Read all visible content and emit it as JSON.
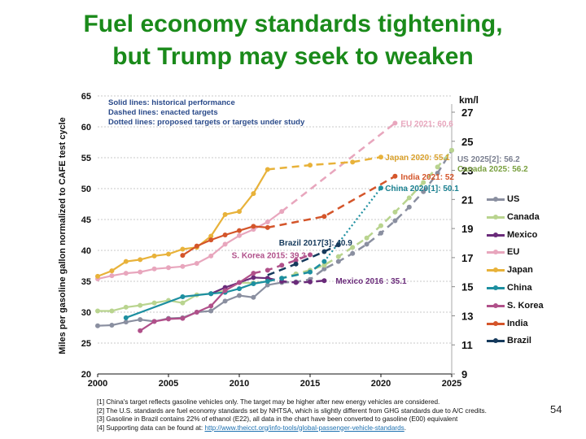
{
  "slide": {
    "title_line1": "Fuel economy standards tightening,",
    "title_line2": "but Trump may seek to weaken",
    "slide_number": "54",
    "title_color": "#1a8a1a"
  },
  "notes": {
    "solid": "Solid lines: historical performance",
    "dashed": "Dashed lines: enacted targets",
    "dotted": "Dotted lines: proposed targets or targets under study"
  },
  "footnotes": {
    "f1": "[1] China's target reflects gasoline vehicles only. The target may be higher after new energy vehicles are considered.",
    "f2": "[2] The U.S. standards are fuel economy standards set by NHTSA, which is slightly different from GHG standards due to A/C credits.",
    "f3": "[3] Gasoline in Brazil contains 22% of ethanol (E22), all data in the chart have been converted to gasoline (E00) equivalent",
    "f4_prefix": "[4] Supporting data can be found at: ",
    "f4_link": "http://www.theicct.org/info-tools/global-passenger-vehicle-standards",
    "f4_suffix": "."
  },
  "chart_data": {
    "type": "line",
    "title": "Fuel economy standards tightening, but Trump may seek to weaken",
    "xlabel": "",
    "ylabel": "Miles per gasoline gallon normalized to CAFE test cycle",
    "y2label": "km/l",
    "xlim": [
      2000,
      2025
    ],
    "ylim": [
      20,
      65
    ],
    "y2lim": [
      9,
      27
    ],
    "x_ticks": [
      "2000",
      "2005",
      "2010",
      "2015",
      "2020",
      "2025"
    ],
    "x_tick_values": [
      2000,
      2005,
      2010,
      2015,
      2020,
      2025
    ],
    "y_ticks": [
      "20",
      "25",
      "30",
      "35",
      "40",
      "45",
      "50",
      "55",
      "60",
      "65"
    ],
    "y_tick_values": [
      20,
      25,
      30,
      35,
      40,
      45,
      50,
      55,
      60,
      65
    ],
    "y2_ticks": [
      "9",
      "11",
      "13",
      "15",
      "17",
      "19",
      "21",
      "23",
      "25",
      "27"
    ],
    "y2_tick_values": [
      9,
      11,
      13,
      15,
      17,
      19,
      21,
      23,
      25,
      27
    ],
    "grid": true,
    "legend_position": "right",
    "series": [
      {
        "name": "US",
        "color": "#8a8fa0",
        "historical": [
          [
            2000,
            27.8
          ],
          [
            2001,
            27.9
          ],
          [
            2002,
            28.4
          ],
          [
            2003,
            28.8
          ],
          [
            2004,
            28.5
          ],
          [
            2005,
            29.0
          ],
          [
            2006,
            29.1
          ],
          [
            2007,
            30.0
          ],
          [
            2008,
            30.2
          ],
          [
            2009,
            31.8
          ],
          [
            2010,
            32.7
          ],
          [
            2011,
            32.4
          ],
          [
            2012,
            34.4
          ],
          [
            2013,
            34.8
          ]
        ],
        "enacted": [
          [
            2013,
            34.8
          ],
          [
            2014,
            34.9
          ],
          [
            2015,
            35.3
          ],
          [
            2016,
            37.0
          ],
          [
            2017,
            38.2
          ],
          [
            2018,
            39.5
          ],
          [
            2019,
            41.0
          ],
          [
            2020,
            42.8
          ],
          [
            2021,
            44.8
          ],
          [
            2022,
            47.0
          ],
          [
            2023,
            49.5
          ],
          [
            2024,
            52.5
          ],
          [
            2025,
            56.2
          ]
        ],
        "proposed": []
      },
      {
        "name": "Canada",
        "color": "#b9d48f",
        "historical": [
          [
            2000,
            30.2
          ],
          [
            2001,
            30.2
          ],
          [
            2002,
            30.8
          ],
          [
            2003,
            31.1
          ],
          [
            2004,
            31.5
          ],
          [
            2005,
            31.9
          ],
          [
            2006,
            31.5
          ],
          [
            2007,
            32.8
          ],
          [
            2008,
            33.0
          ],
          [
            2009,
            33.5
          ],
          [
            2010,
            34.8
          ],
          [
            2011,
            34.7
          ],
          [
            2012,
            35.0
          ]
        ],
        "enacted": [
          [
            2012,
            35.0
          ],
          [
            2013,
            35.5
          ],
          [
            2014,
            36.2
          ],
          [
            2015,
            36.8
          ],
          [
            2016,
            37.6
          ],
          [
            2017,
            39.0
          ],
          [
            2018,
            40.5
          ],
          [
            2019,
            42.0
          ],
          [
            2020,
            44.0
          ],
          [
            2021,
            46.2
          ],
          [
            2022,
            48.5
          ],
          [
            2023,
            51.0
          ],
          [
            2024,
            53.5
          ],
          [
            2025,
            56.2
          ]
        ],
        "proposed": []
      },
      {
        "name": "Mexico",
        "color": "#6a2b7a",
        "historical": [
          [
            2008,
            33.0
          ],
          [
            2009,
            34.0
          ],
          [
            2010,
            34.8
          ],
          [
            2011,
            35.6
          ],
          [
            2012,
            35.5
          ]
        ],
        "enacted": [
          [
            2012,
            35.5
          ],
          [
            2013,
            35.0
          ],
          [
            2014,
            34.8
          ],
          [
            2015,
            34.9
          ],
          [
            2016,
            35.1
          ]
        ],
        "proposed": []
      },
      {
        "name": "EU",
        "color": "#e8a6bd",
        "historical": [
          [
            2000,
            35.4
          ],
          [
            2001,
            35.9
          ],
          [
            2002,
            36.3
          ],
          [
            2003,
            36.5
          ],
          [
            2004,
            37.0
          ],
          [
            2005,
            37.2
          ],
          [
            2006,
            37.4
          ],
          [
            2007,
            37.9
          ],
          [
            2008,
            39.1
          ],
          [
            2009,
            41.0
          ],
          [
            2010,
            42.4
          ],
          [
            2011,
            43.4
          ],
          [
            2012,
            44.6
          ],
          [
            2013,
            46.3
          ]
        ],
        "enacted": [
          [
            2013,
            46.3
          ],
          [
            2021,
            60.6
          ]
        ],
        "proposed": []
      },
      {
        "name": "Japan",
        "color": "#e8b23a",
        "historical": [
          [
            2000,
            35.8
          ],
          [
            2001,
            36.7
          ],
          [
            2002,
            38.2
          ],
          [
            2003,
            38.5
          ],
          [
            2004,
            39.1
          ],
          [
            2005,
            39.4
          ],
          [
            2006,
            40.2
          ],
          [
            2007,
            40.5
          ],
          [
            2008,
            42.3
          ],
          [
            2009,
            45.8
          ],
          [
            2010,
            46.3
          ],
          [
            2011,
            49.2
          ],
          [
            2012,
            53.1
          ]
        ],
        "enacted": [
          [
            2012,
            53.1
          ],
          [
            2015,
            53.8
          ],
          [
            2018,
            54.3
          ],
          [
            2020,
            55.1
          ]
        ],
        "proposed": []
      },
      {
        "name": "China",
        "color": "#1d8fa0",
        "historical": [
          [
            2002,
            29.1
          ],
          [
            2006,
            32.5
          ],
          [
            2008,
            33.0
          ],
          [
            2009,
            33.2
          ],
          [
            2010,
            33.8
          ],
          [
            2011,
            34.6
          ],
          [
            2012,
            35.0
          ]
        ],
        "enacted": [
          [
            2012,
            35.0
          ],
          [
            2013,
            35.5
          ],
          [
            2015,
            36.5
          ],
          [
            2016,
            38.2
          ]
        ],
        "proposed": [
          [
            2016,
            38.2
          ],
          [
            2020,
            50.1
          ]
        ]
      },
      {
        "name": "S. Korea",
        "color": "#b0508a",
        "historical": [
          [
            2003,
            27.0
          ],
          [
            2004,
            28.5
          ],
          [
            2005,
            28.9
          ],
          [
            2006,
            29.0
          ],
          [
            2007,
            30.0
          ],
          [
            2008,
            31.0
          ],
          [
            2009,
            33.5
          ],
          [
            2010,
            34.8
          ],
          [
            2011,
            36.3
          ]
        ],
        "enacted": [
          [
            2011,
            36.3
          ],
          [
            2012,
            36.8
          ],
          [
            2013,
            37.6
          ],
          [
            2014,
            38.4
          ],
          [
            2015,
            39.3
          ]
        ],
        "proposed": []
      },
      {
        "name": "India",
        "color": "#d4552a",
        "historical": [
          [
            2006,
            39.2
          ],
          [
            2007,
            40.7
          ],
          [
            2008,
            41.7
          ],
          [
            2009,
            42.5
          ],
          [
            2010,
            43.2
          ],
          [
            2011,
            43.9
          ],
          [
            2012,
            43.7
          ]
        ],
        "enacted": [
          [
            2012,
            43.7
          ],
          [
            2016,
            45.5
          ],
          [
            2021,
            52.0
          ]
        ],
        "proposed": []
      },
      {
        "name": "Brazil",
        "color": "#163a5c",
        "historical": [],
        "enacted": [
          [
            2012,
            36.0
          ],
          [
            2014,
            37.8
          ],
          [
            2016,
            39.8
          ],
          [
            2017,
            40.9
          ]
        ],
        "proposed": []
      }
    ],
    "annotations": [
      {
        "text": "EU 2021: 60.6",
        "series": "EU",
        "x": 2021,
        "y": 60.6
      },
      {
        "text": "Japan 2020: 55.1",
        "series": "Japan",
        "x": 2020,
        "y": 55.1
      },
      {
        "text": "US 2025[2]: 56.2",
        "series": "US",
        "x": 2025,
        "y": 56.2
      },
      {
        "text": "Canada 2025: 56.2",
        "series": "Canada",
        "x": 2025,
        "y": 56.2
      },
      {
        "text": "India 2021: 52",
        "series": "India",
        "x": 2021,
        "y": 52
      },
      {
        "text": "China 2020[1]: 50.1",
        "series": "China",
        "x": 2020,
        "y": 50.1
      },
      {
        "text": "Brazil 2017[3]: 40.9",
        "series": "Brazil",
        "x": 2017,
        "y": 40.9
      },
      {
        "text": "S. Korea 2015: 39.3",
        "series": "S. Korea",
        "x": 2015,
        "y": 39.3
      },
      {
        "text": "Mexico 2016 : 35.1",
        "series": "Mexico",
        "x": 2016,
        "y": 35.1
      }
    ]
  }
}
